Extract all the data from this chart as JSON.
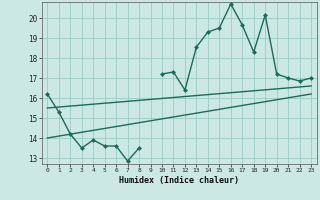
{
  "xlabel": "Humidex (Indice chaleur)",
  "bg_color": "#cce8e4",
  "grid_color": "#99ccc6",
  "line_color": "#1a6b5a",
  "xlim": [
    -0.5,
    23.5
  ],
  "ylim": [
    12.7,
    20.8
  ],
  "yticks": [
    13,
    14,
    15,
    16,
    17,
    18,
    19,
    20
  ],
  "xticks": [
    0,
    1,
    2,
    3,
    4,
    5,
    6,
    7,
    8,
    9,
    10,
    11,
    12,
    13,
    14,
    15,
    16,
    17,
    18,
    19,
    20,
    21,
    22,
    23
  ],
  "series1_x": [
    0,
    1,
    2,
    3,
    4,
    5,
    6,
    7,
    8,
    9,
    10,
    11,
    12,
    13,
    14,
    15,
    16,
    17,
    18,
    19,
    20,
    21,
    22,
    23
  ],
  "series1_y": [
    16.2,
    15.3,
    14.2,
    13.5,
    13.9,
    13.6,
    13.6,
    12.85,
    13.5,
    null,
    17.2,
    17.3,
    16.4,
    18.55,
    19.3,
    19.5,
    20.7,
    19.65,
    18.3,
    20.15,
    17.2,
    17.0,
    16.85,
    17.0
  ],
  "series2_x": [
    0,
    23
  ],
  "series2_y": [
    15.5,
    16.6
  ],
  "series3_x": [
    0,
    23
  ],
  "series3_y": [
    14.0,
    16.2
  ],
  "marker_size": 2.5,
  "linewidth": 1.0
}
